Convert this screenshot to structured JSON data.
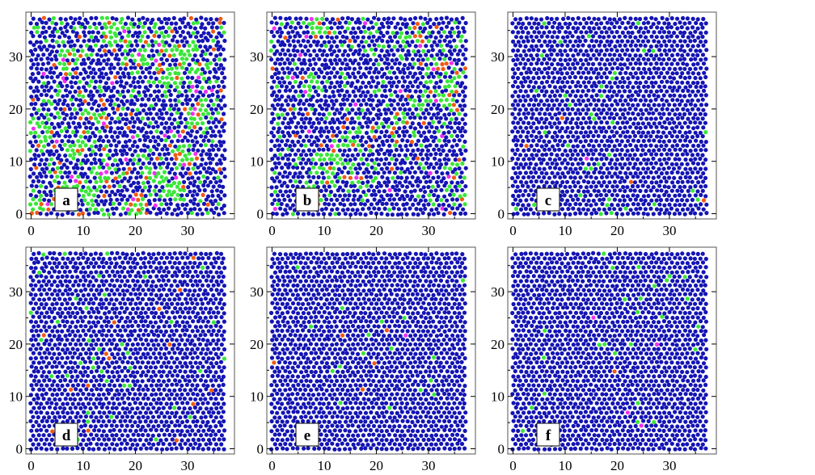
{
  "chart_data": {
    "type": "scatter",
    "description_of_marks": "particle configurations; marker color encodes local coordination",
    "colors": {
      "six_fold": "#1414b4",
      "five_fold": "#3ae63a",
      "seven_fold": "#f05a14",
      "other": "#f030f0",
      "frame": "#555555",
      "tick": "#000000"
    },
    "xlim": [
      -1,
      39
    ],
    "ylim": [
      -1,
      38.5
    ],
    "x_ticks": [
      "0",
      "10",
      "20",
      "30"
    ],
    "y_ticks": [
      "0",
      "10",
      "20",
      "30"
    ],
    "x_tick_values": [
      0,
      10,
      20,
      30
    ],
    "y_tick_values": [
      0,
      10,
      20,
      30
    ],
    "panels": [
      {
        "label": "a",
        "defect_fraction": {
          "five_fold": 0.3,
          "seven_fold": 0.07,
          "other": 0.025
        }
      },
      {
        "label": "b",
        "defect_fraction": {
          "five_fold": 0.22,
          "seven_fold": 0.05,
          "other": 0.015
        }
      },
      {
        "label": "c",
        "defect_fraction": {
          "five_fold": 0.055,
          "seven_fold": 0.005,
          "other": 0.002
        }
      },
      {
        "label": "d",
        "defect_fraction": {
          "five_fold": 0.06,
          "seven_fold": 0.012,
          "other": 0.002
        }
      },
      {
        "label": "e",
        "defect_fraction": {
          "five_fold": 0.03,
          "seven_fold": 0.004,
          "other": 0.003
        }
      },
      {
        "label": "f",
        "defect_fraction": {
          "five_fold": 0.025,
          "seven_fold": 0.003,
          "other": 0.002
        }
      }
    ]
  }
}
